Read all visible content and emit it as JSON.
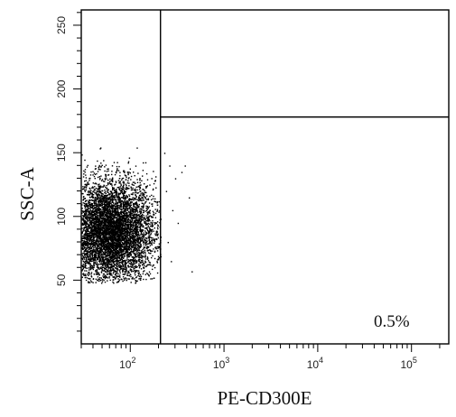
{
  "chart_data": {
    "type": "scatter",
    "title": "",
    "xlabel": "PE-CD300E",
    "ylabel": "SSC-A",
    "x_scale": "log",
    "x_range": [
      30,
      250000
    ],
    "y_range": [
      0,
      262
    ],
    "x_ticks": [
      {
        "value": 100,
        "base": "10",
        "exp": "2"
      },
      {
        "value": 1000,
        "base": "10",
        "exp": "3"
      },
      {
        "value": 10000,
        "base": "10",
        "exp": "4"
      },
      {
        "value": 100000,
        "base": "10",
        "exp": "5"
      }
    ],
    "y_ticks": [
      {
        "value": 50,
        "label": "50"
      },
      {
        "value": 100,
        "label": "100"
      },
      {
        "value": 150,
        "label": "150"
      },
      {
        "value": 200,
        "label": "200"
      },
      {
        "value": 250,
        "label": "250"
      }
    ],
    "gates": {
      "vertical_x": 210,
      "horizontal_y": 178
    },
    "quadrant_percent": "0.5%",
    "population": {
      "description": "dense event cloud",
      "x_log_range": [
        30,
        210
      ],
      "y_range": [
        48,
        155
      ],
      "x_log_center": 60,
      "y_center": 88
    },
    "sparse_events": [
      {
        "x": 240,
        "y": 120
      },
      {
        "x": 260,
        "y": 140
      },
      {
        "x": 280,
        "y": 105
      },
      {
        "x": 300,
        "y": 130
      },
      {
        "x": 320,
        "y": 95
      },
      {
        "x": 350,
        "y": 135
      },
      {
        "x": 380,
        "y": 140
      },
      {
        "x": 420,
        "y": 115
      },
      {
        "x": 450,
        "y": 57
      },
      {
        "x": 250,
        "y": 80
      },
      {
        "x": 230,
        "y": 150
      },
      {
        "x": 270,
        "y": 65
      }
    ]
  }
}
